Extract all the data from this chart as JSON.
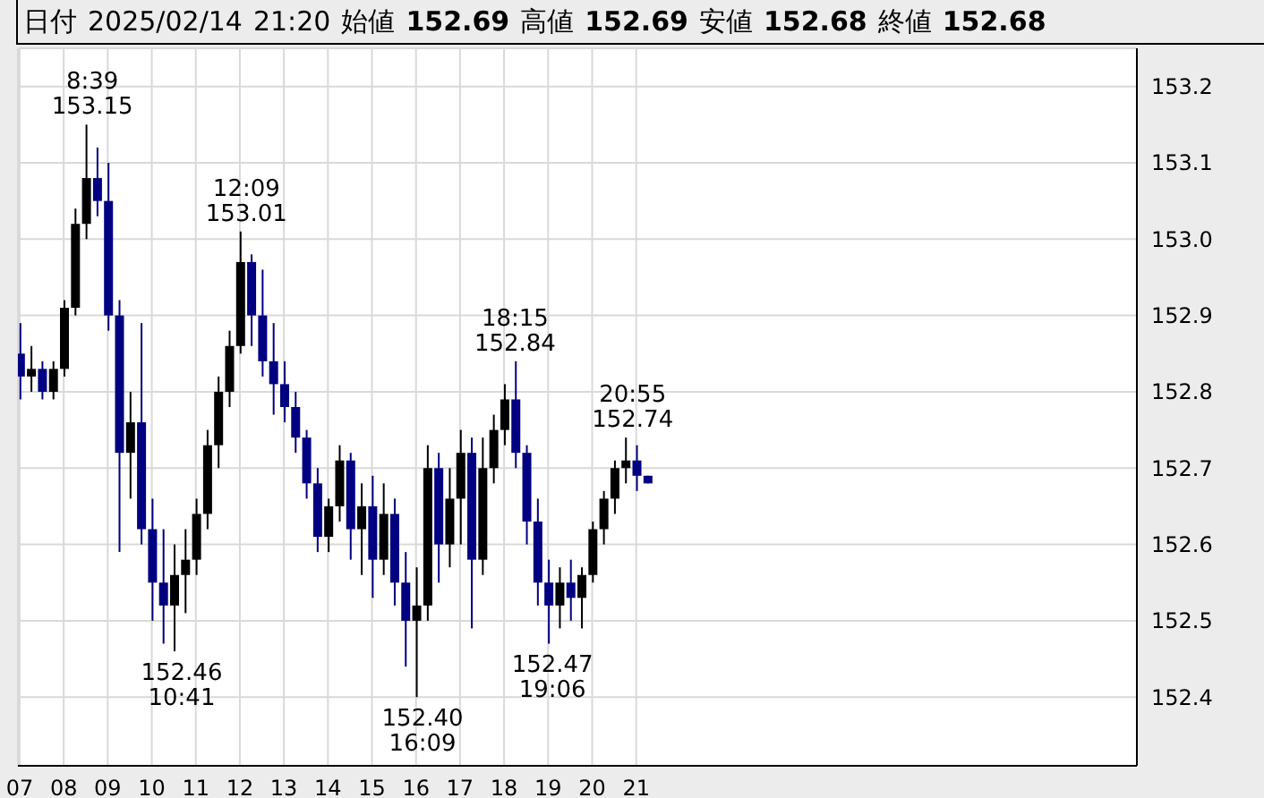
{
  "chart_data": {
    "type": "candlestick",
    "annotations": [
      "日付 2025/02/14 21:20 始値 152.69 高値 152.69 安値 152.68 終値 152.68",
      {
        "text": "8:39\n153.15",
        "x": 8.65,
        "y": 153.15
      },
      {
        "text": "152.46\n10:41",
        "x": 10.68,
        "y": 152.46
      },
      {
        "text": "12:09\n153.01",
        "x": 12.15,
        "y": 153.01
      },
      {
        "text": "152.40\n16:09",
        "x": 16.15,
        "y": 152.4
      },
      {
        "text": "18:15\n152.84",
        "x": 18.25,
        "y": 152.84
      },
      {
        "text": "152.47\n19:06",
        "x": 19.1,
        "y": 152.47
      },
      {
        "text": "20:55\n152.74",
        "x": 20.92,
        "y": 152.74
      }
    ],
    "x": [
      7,
      7.25,
      7.5,
      7.75,
      8,
      8.25,
      8.5,
      8.75,
      9,
      9.25,
      9.5,
      9.75,
      10,
      10.25,
      10.5,
      10.75,
      11,
      11.25,
      11.5,
      11.75,
      12,
      12.25,
      12.5,
      12.75,
      13,
      13.25,
      13.5,
      13.75,
      14,
      14.25,
      14.5,
      14.75,
      15,
      15.25,
      15.5,
      15.75,
      16,
      16.25,
      16.5,
      16.75,
      17,
      17.25,
      17.5,
      17.75,
      18,
      18.25,
      18.5,
      18.75,
      19,
      19.25,
      19.5,
      19.75,
      20,
      20.25,
      20.5,
      20.75,
      21,
      21.25
    ],
    "ohlc": [
      [
        152.85,
        152.89,
        152.79,
        152.82
      ],
      [
        152.82,
        152.86,
        152.8,
        152.83
      ],
      [
        152.83,
        152.84,
        152.79,
        152.8
      ],
      [
        152.8,
        152.84,
        152.79,
        152.83
      ],
      [
        152.83,
        152.92,
        152.82,
        152.91
      ],
      [
        152.91,
        153.04,
        152.9,
        153.02
      ],
      [
        153.02,
        153.15,
        153.0,
        153.08
      ],
      [
        153.08,
        153.12,
        153.03,
        153.05
      ],
      [
        153.05,
        153.1,
        152.88,
        152.9
      ],
      [
        152.9,
        152.92,
        152.59,
        152.72
      ],
      [
        152.72,
        152.8,
        152.66,
        152.76
      ],
      [
        152.76,
        152.89,
        152.6,
        152.62
      ],
      [
        152.62,
        152.66,
        152.5,
        152.55
      ],
      [
        152.55,
        152.62,
        152.47,
        152.52
      ],
      [
        152.52,
        152.6,
        152.46,
        152.56
      ],
      [
        152.56,
        152.62,
        152.51,
        152.58
      ],
      [
        152.58,
        152.66,
        152.56,
        152.64
      ],
      [
        152.64,
        152.75,
        152.62,
        152.73
      ],
      [
        152.73,
        152.82,
        152.7,
        152.8
      ],
      [
        152.8,
        152.88,
        152.78,
        152.86
      ],
      [
        152.86,
        153.01,
        152.85,
        152.97
      ],
      [
        152.97,
        152.98,
        152.86,
        152.9
      ],
      [
        152.9,
        152.96,
        152.82,
        152.84
      ],
      [
        152.84,
        152.89,
        152.77,
        152.81
      ],
      [
        152.81,
        152.84,
        152.76,
        152.78
      ],
      [
        152.78,
        152.8,
        152.72,
        152.74
      ],
      [
        152.74,
        152.75,
        152.66,
        152.68
      ],
      [
        152.68,
        152.7,
        152.59,
        152.61
      ],
      [
        152.61,
        152.66,
        152.59,
        152.65
      ],
      [
        152.65,
        152.73,
        152.63,
        152.71
      ],
      [
        152.71,
        152.72,
        152.58,
        152.62
      ],
      [
        152.62,
        152.68,
        152.56,
        152.65
      ],
      [
        152.65,
        152.69,
        152.53,
        152.58
      ],
      [
        152.58,
        152.68,
        152.56,
        152.64
      ],
      [
        152.64,
        152.66,
        152.52,
        152.55
      ],
      [
        152.55,
        152.59,
        152.44,
        152.5
      ],
      [
        152.5,
        152.57,
        152.4,
        152.52
      ],
      [
        152.52,
        152.73,
        152.5,
        152.7
      ],
      [
        152.7,
        152.72,
        152.55,
        152.6
      ],
      [
        152.6,
        152.7,
        152.57,
        152.66
      ],
      [
        152.66,
        152.75,
        152.6,
        152.72
      ],
      [
        152.72,
        152.74,
        152.49,
        152.58
      ],
      [
        152.58,
        152.74,
        152.56,
        152.7
      ],
      [
        152.7,
        152.77,
        152.68,
        152.75
      ],
      [
        152.75,
        152.81,
        152.73,
        152.79
      ],
      [
        152.79,
        152.84,
        152.7,
        152.72
      ],
      [
        152.72,
        152.73,
        152.6,
        152.63
      ],
      [
        152.63,
        152.66,
        152.52,
        152.55
      ],
      [
        152.55,
        152.58,
        152.47,
        152.52
      ],
      [
        152.52,
        152.57,
        152.49,
        152.55
      ],
      [
        152.55,
        152.58,
        152.5,
        152.53
      ],
      [
        152.53,
        152.57,
        152.49,
        152.56
      ],
      [
        152.56,
        152.63,
        152.55,
        152.62
      ],
      [
        152.62,
        152.67,
        152.6,
        152.66
      ],
      [
        152.66,
        152.71,
        152.64,
        152.7
      ],
      [
        152.7,
        152.74,
        152.68,
        152.71
      ],
      [
        152.71,
        152.73,
        152.67,
        152.69
      ],
      [
        152.69,
        152.69,
        152.68,
        152.68
      ]
    ],
    "colors": [
      "#000080",
      "#000000",
      "#000080",
      "#000000",
      "#000000",
      "#000000",
      "#000000",
      "#000080",
      "#000080",
      "#000080",
      "#000000",
      "#000080",
      "#000080",
      "#000080",
      "#000000",
      "#000000",
      "#000000",
      "#000000",
      "#000000",
      "#000000",
      "#000000",
      "#000080",
      "#000080",
      "#000080",
      "#000080",
      "#000080",
      "#000080",
      "#000080",
      "#000000",
      "#000000",
      "#000080",
      "#000000",
      "#000080",
      "#000000",
      "#000080",
      "#000080",
      "#000000",
      "#000000",
      "#000080",
      "#000000",
      "#000000",
      "#000080",
      "#000000",
      "#000000",
      "#000000",
      "#000080",
      "#000080",
      "#000080",
      "#000080",
      "#000000",
      "#000080",
      "#000000",
      "#000000",
      "#000000",
      "#000000",
      "#000000",
      "#000080",
      "#000080"
    ],
    "xlim": [
      6.96,
      32.37
    ],
    "xticks": [
      {
        "value": 7,
        "label": "07"
      },
      {
        "value": 8,
        "label": "08"
      },
      {
        "value": 9,
        "label": "09"
      },
      {
        "value": 10,
        "label": "10"
      },
      {
        "value": 11,
        "label": "11"
      },
      {
        "value": 12,
        "label": "12"
      },
      {
        "value": 13,
        "label": "13"
      },
      {
        "value": 14,
        "label": "14"
      },
      {
        "value": 15,
        "label": "15"
      },
      {
        "value": 16,
        "label": "16"
      },
      {
        "value": 17,
        "label": "17"
      },
      {
        "value": 18,
        "label": "18"
      },
      {
        "value": 19,
        "label": "19"
      },
      {
        "value": 20,
        "label": "20"
      },
      {
        "value": 21,
        "label": "21"
      }
    ],
    "ylim": [
      152.31,
      153.25
    ],
    "yticks": [
      152.4,
      152.5,
      152.6,
      152.7,
      152.8,
      152.9,
      {
        "value": 153,
        "label": "153.0"
      },
      153.1,
      153.2
    ],
    "grid": true
  }
}
